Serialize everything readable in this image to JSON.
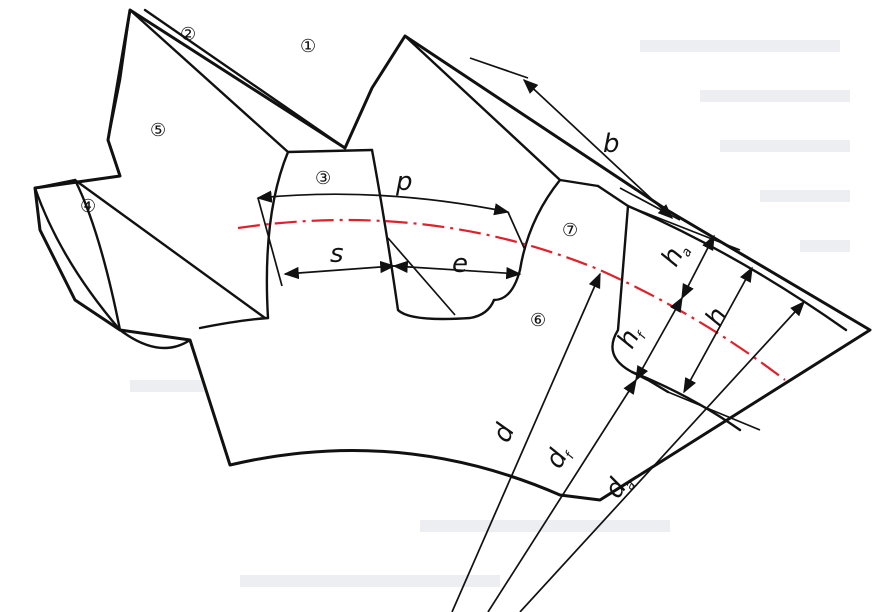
{
  "diagram": {
    "labels": {
      "b": "b",
      "p": "p",
      "s": "s",
      "e": "e",
      "ha_main": "h",
      "ha_sub": "a",
      "hf_main": "h",
      "hf_sub": "f",
      "h": "h",
      "d": "d",
      "df_main": "d",
      "df_sub": "f",
      "da_main": "d",
      "da_sub": "a"
    },
    "markers": [
      "①",
      "②",
      "③",
      "④",
      "⑤",
      "⑥",
      "⑦"
    ],
    "colors": {
      "outline": "#111111",
      "pitch_circle": "#e0202a",
      "background": "#ffffff"
    }
  }
}
